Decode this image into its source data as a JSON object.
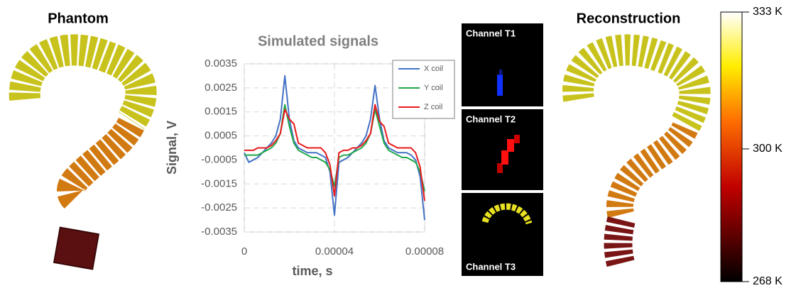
{
  "panels": {
    "phantom": "Phantom",
    "reconstruction": "Reconstruction",
    "channels": [
      "Channel T1",
      "Channel T2",
      "Channel T3"
    ]
  },
  "colorbar": {
    "ticks": [
      {
        "value": 333,
        "label": "333 K"
      },
      {
        "value": 300,
        "label": "300 K"
      },
      {
        "value": 268,
        "label": "268 K"
      }
    ]
  },
  "chart_data": {
    "type": "line",
    "title": "Simulated signals",
    "xlabel": "time, s",
    "ylabel": "Signal, V",
    "x": [
      0,
      2e-06,
      4e-06,
      6e-06,
      8e-06,
      1e-05,
      1.2e-05,
      1.4e-05,
      1.6e-05,
      1.8e-05,
      2e-05,
      2.2e-05,
      2.4e-05,
      2.6e-05,
      2.8e-05,
      3e-05,
      3.2e-05,
      3.4e-05,
      3.6e-05,
      3.8e-05,
      4e-05,
      4.2e-05,
      4.4e-05,
      4.6e-05,
      4.8e-05,
      5e-05,
      5.2e-05,
      5.4e-05,
      5.6e-05,
      5.8e-05,
      6e-05,
      6.2e-05,
      6.4e-05,
      6.6e-05,
      6.8e-05,
      7e-05,
      7.2e-05,
      7.4e-05,
      7.6e-05,
      7.8e-05,
      8e-05
    ],
    "series": [
      {
        "name": "X coil",
        "color": "#4472c4",
        "values": [
          -0.0002,
          -0.0006,
          -0.0005,
          -0.0004,
          -0.0002,
          0,
          0.0002,
          0.0005,
          0.0012,
          0.003,
          0.0012,
          0.0003,
          0,
          -0.0001,
          -0.0002,
          -0.0002,
          -0.0002,
          -0.0003,
          -0.0004,
          -0.001,
          -0.0028,
          -0.0006,
          -0.0005,
          -0.0004,
          -0.0002,
          0,
          0.0002,
          0.0005,
          0.0012,
          0.0026,
          0.0012,
          0.0003,
          0,
          -0.0001,
          -0.0002,
          -0.0002,
          -0.0002,
          -0.0003,
          -0.0005,
          -0.0012,
          -0.003
        ]
      },
      {
        "name": "Y coil",
        "color": "#21a84a",
        "values": [
          -0.0003,
          -0.0003,
          -0.0003,
          -0.0003,
          -0.0002,
          -0.0001,
          0,
          0.0002,
          0.0006,
          0.0018,
          0.0009,
          0.0002,
          -0.0001,
          -0.0002,
          -0.0003,
          -0.0004,
          -0.0004,
          -0.0005,
          -0.0006,
          -0.0009,
          -0.0016,
          -0.0004,
          -0.0003,
          -0.0003,
          -0.0002,
          -0.0001,
          0,
          0.0002,
          0.0006,
          0.0016,
          0.0009,
          0.0002,
          -0.0001,
          -0.0002,
          -0.0003,
          -0.0004,
          -0.0004,
          -0.0005,
          -0.0006,
          -0.001,
          -0.0018
        ]
      },
      {
        "name": "Z coil",
        "color": "#e8191b",
        "values": [
          -0.0001,
          -0.0001,
          -0.0001,
          0,
          0,
          0,
          0.0001,
          0.0003,
          0.0006,
          0.0016,
          0.0012,
          0.001,
          0.0002,
          0.0001,
          0,
          0,
          0,
          0,
          -0.0002,
          -0.0007,
          -0.002,
          -0.0002,
          -0.0001,
          -0.0001,
          0,
          0,
          0.0001,
          0.0003,
          0.0006,
          0.0018,
          0.0011,
          0.0009,
          0.0002,
          0.0001,
          0,
          0,
          0,
          0,
          -0.0002,
          -0.0008,
          -0.0022
        ]
      }
    ],
    "xlim": [
      0,
      8e-05
    ],
    "xticks": [
      0,
      4e-05,
      8e-05
    ],
    "ylim": [
      -0.0035,
      0.0035
    ],
    "yticks": [
      0.0035,
      0.0025,
      0.0015,
      0.0005,
      -0.0005,
      -0.0015,
      -0.0025,
      -0.0035
    ],
    "grid": true,
    "legend_position": "upper right"
  }
}
